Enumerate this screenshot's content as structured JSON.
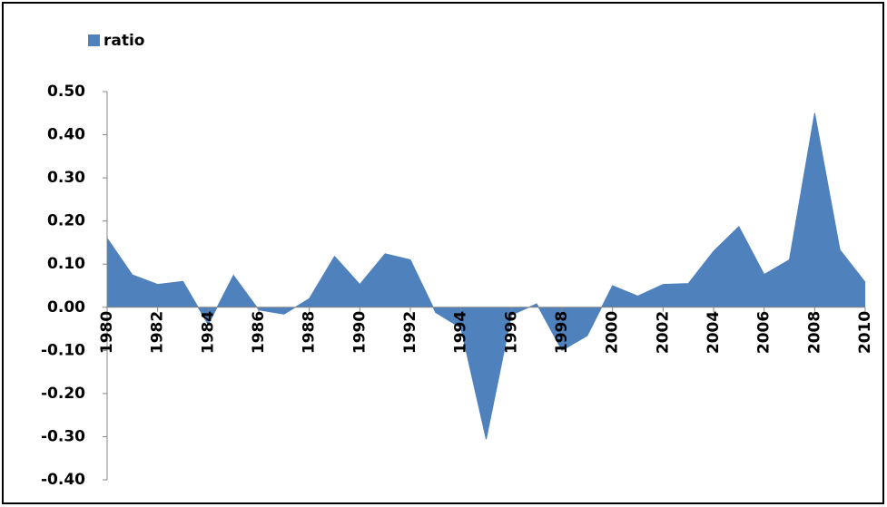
{
  "chart_data": {
    "type": "area",
    "series": [
      {
        "name": "ratio",
        "color": "#4f81bd",
        "values": [
          0.16,
          0.075,
          0.053,
          0.06,
          -0.04,
          0.074,
          -0.006,
          -0.016,
          0.02,
          0.118,
          0.053,
          0.124,
          0.11,
          -0.012,
          -0.048,
          -0.306,
          -0.018,
          0.008,
          -0.1,
          -0.066,
          0.05,
          0.026,
          0.053,
          0.055,
          0.13,
          0.187,
          0.076,
          0.11,
          0.45,
          0.133,
          0.058
        ]
      }
    ],
    "x": [
      1980,
      1981,
      1982,
      1983,
      1984,
      1985,
      1986,
      1987,
      1988,
      1989,
      1990,
      1991,
      1992,
      1993,
      1994,
      1995,
      1996,
      1997,
      1998,
      1999,
      2000,
      2001,
      2002,
      2003,
      2004,
      2005,
      2006,
      2007,
      2008,
      2009,
      2010
    ],
    "xlim": [
      1980,
      2010
    ],
    "xticks": [
      1980,
      1982,
      1984,
      1986,
      1988,
      1990,
      1992,
      1994,
      1996,
      1998,
      2000,
      2002,
      2004,
      2006,
      2008,
      2010
    ],
    "ylim": [
      -0.4,
      0.5
    ],
    "yticks": [
      {
        "value": -0.4,
        "label": "-0.40"
      },
      {
        "value": -0.3,
        "label": "-0.30"
      },
      {
        "value": -0.2,
        "label": "-0.20"
      },
      {
        "value": -0.1,
        "label": "-0.10"
      },
      {
        "value": 0,
        "label": "0.00"
      },
      {
        "value": 0.1,
        "label": "0.10"
      },
      {
        "value": 0.2,
        "label": "0.20"
      },
      {
        "value": 0.3,
        "label": "0.30"
      },
      {
        "value": 0.4,
        "label": "0.40"
      },
      {
        "value": 0.5,
        "label": "0.50"
      }
    ],
    "legend": "top-left",
    "grid": false
  }
}
